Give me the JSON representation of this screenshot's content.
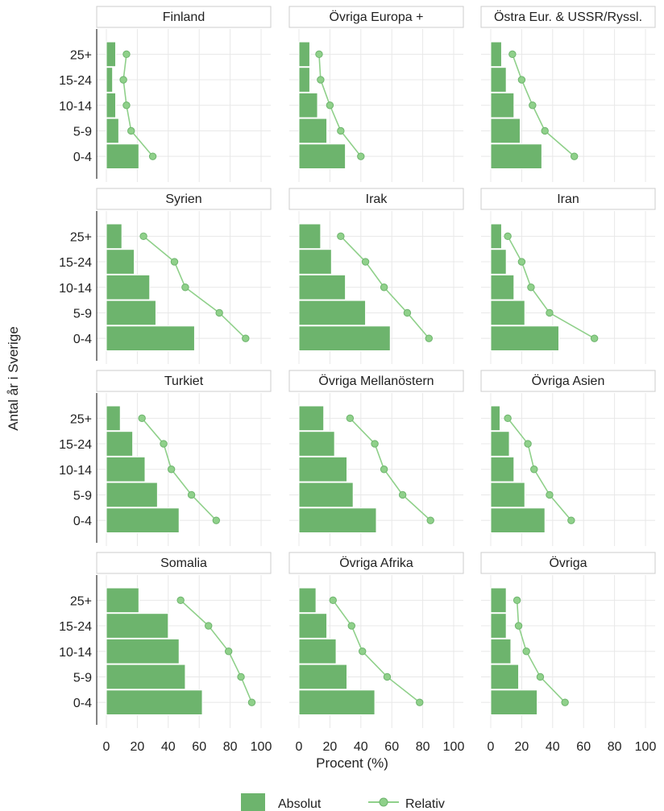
{
  "chart_data": {
    "type": "bar",
    "layout": "facet-grid",
    "orientation": "horizontal",
    "categories": [
      "0-4",
      "5-9",
      "10-14",
      "15-24",
      "25+"
    ],
    "xlabel": "Procent (%)",
    "ylabel": "Antal år i Sverige",
    "xlim": [
      0,
      100
    ],
    "xticks": [
      "0",
      "20",
      "40",
      "60",
      "80",
      "100"
    ],
    "grid": true,
    "legend_position": "bottom",
    "series_names": [
      "Absolut",
      "Relativ"
    ],
    "colors": {
      "bar": "#6db46d",
      "line": "#8fd08a",
      "marker": "#8fd08a",
      "marker_edge": "#6db46d",
      "strip_bg": "#ffffff",
      "strip_border": "#cccccc",
      "grid": "#e8e8e8"
    },
    "facets": [
      {
        "title": "Finland",
        "absolut": [
          21,
          8,
          6,
          4,
          6
        ],
        "relativ": [
          30,
          16,
          13,
          11,
          13
        ]
      },
      {
        "title": "Övriga Europa +",
        "absolut": [
          30,
          18,
          12,
          7,
          7
        ],
        "relativ": [
          40,
          27,
          20,
          14,
          13
        ]
      },
      {
        "title": "Östra Eur. & USSR/Ryssl.",
        "absolut": [
          33,
          19,
          15,
          10,
          7
        ],
        "relativ": [
          54,
          35,
          27,
          20,
          14
        ]
      },
      {
        "title": "Syrien",
        "absolut": [
          57,
          32,
          28,
          18,
          10
        ],
        "relativ": [
          90,
          73,
          51,
          44,
          24
        ]
      },
      {
        "title": "Irak",
        "absolut": [
          59,
          43,
          30,
          21,
          14
        ],
        "relativ": [
          84,
          70,
          55,
          43,
          27
        ]
      },
      {
        "title": "Iran",
        "absolut": [
          44,
          22,
          15,
          10,
          7
        ],
        "relativ": [
          67,
          38,
          26,
          20,
          11
        ]
      },
      {
        "title": "Turkiet",
        "absolut": [
          47,
          33,
          25,
          17,
          9
        ],
        "relativ": [
          71,
          55,
          42,
          37,
          23
        ]
      },
      {
        "title": "Övriga Mellanöstern",
        "absolut": [
          50,
          35,
          31,
          23,
          16
        ],
        "relativ": [
          85,
          67,
          55,
          49,
          33
        ]
      },
      {
        "title": "Övriga Asien",
        "absolut": [
          35,
          22,
          15,
          12,
          6
        ],
        "relativ": [
          52,
          38,
          28,
          24,
          11
        ]
      },
      {
        "title": "Somalia",
        "absolut": [
          62,
          51,
          47,
          40,
          21
        ],
        "relativ": [
          94,
          87,
          79,
          66,
          48
        ]
      },
      {
        "title": "Övriga Afrika",
        "absolut": [
          49,
          31,
          24,
          18,
          11
        ],
        "relativ": [
          78,
          57,
          41,
          34,
          22
        ]
      },
      {
        "title": "Övriga",
        "absolut": [
          30,
          18,
          13,
          10,
          10
        ],
        "relativ": [
          48,
          32,
          23,
          18,
          17
        ]
      }
    ]
  }
}
